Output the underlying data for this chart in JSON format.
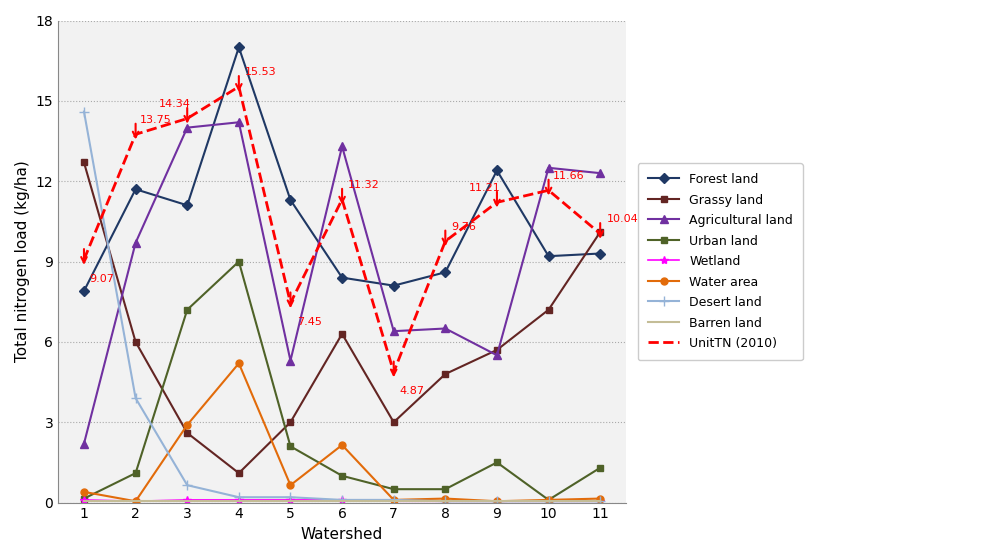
{
  "watersheds": [
    1,
    2,
    3,
    4,
    5,
    6,
    7,
    8,
    9,
    10,
    11
  ],
  "forest_land": [
    7.9,
    11.7,
    11.1,
    17.0,
    11.3,
    8.4,
    8.1,
    8.6,
    12.4,
    9.2,
    9.3
  ],
  "grassy_land": [
    12.7,
    6.0,
    2.6,
    1.1,
    3.0,
    6.3,
    3.0,
    4.8,
    5.7,
    7.2,
    10.1
  ],
  "agricultural_land": [
    2.2,
    9.7,
    14.0,
    14.2,
    5.3,
    13.3,
    6.4,
    6.5,
    5.5,
    12.5,
    12.3
  ],
  "urban_land": [
    0.15,
    1.1,
    7.2,
    9.0,
    2.1,
    1.0,
    0.5,
    0.5,
    1.5,
    0.1,
    1.3
  ],
  "wetland": [
    0.1,
    0.05,
    0.1,
    0.1,
    0.1,
    0.1,
    0.05,
    0.05,
    0.05,
    0.05,
    0.05
  ],
  "water_area": [
    0.4,
    0.05,
    2.9,
    5.2,
    0.65,
    2.15,
    0.1,
    0.15,
    0.05,
    0.1,
    0.15
  ],
  "desert_land": [
    14.6,
    3.9,
    0.65,
    0.2,
    0.2,
    0.1,
    0.1,
    0.05,
    0.05,
    0.05,
    0.05
  ],
  "barren_land": [
    0.05,
    0.05,
    0.05,
    0.05,
    0.05,
    0.05,
    0.05,
    0.05,
    0.05,
    0.05,
    0.05
  ],
  "unit_tn_2010": [
    9.07,
    13.75,
    14.34,
    15.53,
    7.45,
    11.32,
    4.87,
    9.76,
    11.21,
    11.66,
    10.04
  ],
  "unit_tn_labels": [
    "9.07",
    "13.75",
    "14.34",
    "15.53",
    "7.45",
    "11.32",
    "4.87",
    "9.76",
    "11.21",
    "11.66",
    "10.04"
  ],
  "label_offsets_x": [
    0.1,
    0.08,
    -0.55,
    0.12,
    0.12,
    0.12,
    0.12,
    0.12,
    -0.55,
    0.08,
    0.12
  ],
  "label_offsets_y": [
    -0.9,
    0.35,
    0.35,
    0.35,
    -0.9,
    0.35,
    -0.9,
    0.35,
    0.35,
    0.35,
    0.35
  ],
  "colors": {
    "forest_land": "#1F3864",
    "grassy_land": "#632523",
    "agricultural_land": "#7030A0",
    "urban_land": "#4F6228",
    "wetland": "#FF00FF",
    "water_area": "#E26B0A",
    "desert_land": "#95B3D7",
    "barren_land": "#C4BD97",
    "unit_tn": "#FF0000"
  },
  "ylabel": "Total nitrogen load (kg/ha)",
  "xlabel": "Watershed",
  "ylim": [
    0,
    18
  ],
  "yticks": [
    0,
    3,
    6,
    9,
    12,
    15,
    18
  ],
  "background_color": "#F2F2F2",
  "fig_background": "#FFFFFF"
}
